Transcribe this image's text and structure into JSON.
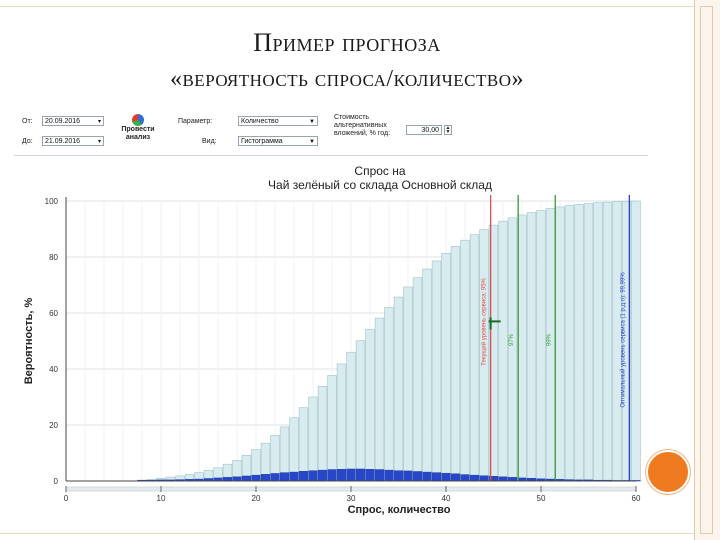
{
  "slide": {
    "title_line1": "Пример прогноза",
    "title_line2": "«вероятность спроса/количество»"
  },
  "toolbar": {
    "from_label": "От:",
    "from_value": "20.09.2016",
    "to_label": "До:",
    "to_value": "21.09.2016",
    "run_button_label": "Провести анализ",
    "param_label": "Параметр:",
    "param_value": "Количество",
    "view_label": "Вид:",
    "view_value": "Гистограмма",
    "cost_label": "Стоимость альтернативных вложений, % год:",
    "cost_value": "30,00"
  },
  "chart_data": {
    "type": "bar",
    "title_line1": "Спрос на",
    "title_line2": "Чай зелёный со склада Основной склад",
    "xlabel": "Спрос, количество",
    "ylabel": "Вероятность, %",
    "xlim": [
      0,
      60
    ],
    "ylim": [
      0,
      100
    ],
    "x_ticks": [
      0,
      10,
      20,
      30,
      40,
      50,
      60
    ],
    "y_ticks": [
      0,
      20,
      40,
      60,
      80,
      100
    ],
    "grid": true,
    "series": [
      {
        "name": "",
        "kind": "cumulative",
        "color": "#d8ecef",
        "x": [
          8,
          9,
          10,
          11,
          12,
          13,
          14,
          15,
          16,
          17,
          18,
          19,
          20,
          21,
          22,
          23,
          24,
          25,
          26,
          27,
          28,
          29,
          30,
          31,
          32,
          33,
          34,
          35,
          36,
          37,
          38,
          39,
          40,
          41,
          42,
          43,
          44,
          45,
          46,
          47,
          48,
          49,
          50,
          51,
          52,
          53,
          54,
          55,
          56,
          57,
          58,
          59,
          60
        ],
        "values": [
          0.3,
          0.6,
          1,
          1.4,
          1.8,
          2.3,
          3,
          3.8,
          4.7,
          6,
          7.4,
          9.2,
          11.2,
          13.5,
          16.3,
          19.3,
          22.6,
          26.2,
          30,
          33.8,
          37.7,
          41.8,
          46,
          50.1,
          54.2,
          58.2,
          62,
          65.7,
          69.3,
          72.6,
          75.7,
          78.6,
          81.3,
          83.8,
          86,
          88,
          89.8,
          91.4,
          92.8,
          94,
          95,
          95.9,
          96.6,
          97.3,
          97.9,
          98.4,
          98.8,
          99.1,
          99.4,
          99.6,
          99.8,
          99.9,
          100
        ]
      },
      {
        "name": "",
        "kind": "density",
        "color": "#2746c8",
        "x": [
          8,
          9,
          10,
          11,
          12,
          13,
          14,
          15,
          16,
          17,
          18,
          19,
          20,
          21,
          22,
          23,
          24,
          25,
          26,
          27,
          28,
          29,
          30,
          31,
          32,
          33,
          34,
          35,
          36,
          37,
          38,
          39,
          40,
          41,
          42,
          43,
          44,
          45,
          46,
          47,
          48,
          49,
          50,
          51,
          52,
          53,
          54,
          55,
          56,
          57,
          58,
          59,
          60
        ],
        "values": [
          0.3,
          0.3,
          0.4,
          0.4,
          0.5,
          0.6,
          0.7,
          0.9,
          1.1,
          1.3,
          1.5,
          1.8,
          2.1,
          2.4,
          2.7,
          3,
          3.2,
          3.5,
          3.7,
          3.9,
          4.1,
          4.2,
          4.3,
          4.3,
          4.2,
          4.1,
          3.9,
          3.7,
          3.6,
          3.4,
          3.2,
          3,
          2.8,
          2.6,
          2.3,
          2.1,
          1.9,
          1.7,
          1.5,
          1.3,
          1.1,
          1,
          0.8,
          0.7,
          0.6,
          0.5,
          0.4,
          0.4,
          0.3,
          0.3,
          0.2,
          0.2,
          0.2
        ]
      }
    ],
    "markers": [
      {
        "x": 44.7,
        "color": "#e05050",
        "label": "Текущий уровень сервиса: 95%"
      },
      {
        "x": 47.6,
        "color": "#3a9a3a",
        "label": "97%"
      },
      {
        "x": 51.5,
        "color": "#3a9a3a",
        "label": "99%"
      },
      {
        "x": 59.3,
        "color": "#2a3fd0",
        "label": "Оптимальный уровень сервиса (1 р.д.о): 99,99%"
      }
    ],
    "current_point": {
      "x": 44.7,
      "y": 57
    }
  }
}
